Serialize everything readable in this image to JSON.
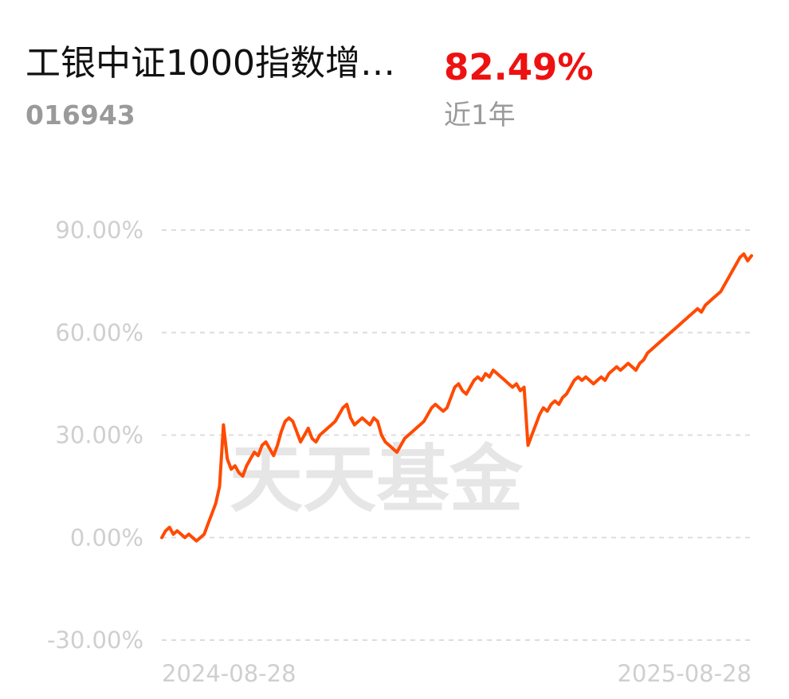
{
  "header": {
    "fund_name": "工银中证1000指数增…",
    "fund_code": "016943",
    "return_value": "82.49%",
    "return_period": "近1年"
  },
  "watermark": "天天基金",
  "colors": {
    "line": "#ff4a00",
    "return": "#ee1111",
    "grid": "#dddddd",
    "tick": "#cfcfcf"
  },
  "chart_data": {
    "type": "line",
    "title": "",
    "xlabel": "",
    "ylabel": "",
    "x_tick_labels": [
      "2024-08-28",
      "2025-08-28"
    ],
    "y_tick_labels": [
      "90.00%",
      "60.00%",
      "30.00%",
      "0.00%",
      "-30.00%"
    ],
    "y_ticks": [
      90,
      60,
      30,
      0,
      -30
    ],
    "ylim": [
      -30,
      90
    ],
    "grid": true,
    "legend": "none",
    "series": [
      {
        "values": [
          0,
          2,
          3,
          1,
          2,
          1,
          0,
          1,
          0,
          -1,
          0,
          1,
          4,
          7,
          10,
          15,
          33,
          23,
          20,
          21,
          19,
          18,
          21,
          23,
          25,
          24,
          27,
          28,
          26,
          24,
          27,
          31,
          34,
          35,
          34,
          31,
          28,
          30,
          32,
          29,
          28,
          30,
          31,
          32,
          33,
          34,
          36,
          38,
          39,
          35,
          33,
          34,
          35,
          34,
          33,
          35,
          34,
          30,
          28,
          27,
          26,
          25,
          27,
          29,
          30,
          31,
          32,
          33,
          34,
          36,
          38,
          39,
          38,
          37,
          38,
          41,
          44,
          45,
          43,
          42,
          44,
          46,
          47,
          46,
          48,
          47,
          49,
          48,
          47,
          46,
          45,
          44,
          45,
          43,
          44,
          27,
          30,
          33,
          36,
          38,
          37,
          39,
          40,
          39,
          41,
          42,
          44,
          46,
          47,
          46,
          47,
          46,
          45,
          46,
          47,
          46,
          48,
          49,
          50,
          49,
          50,
          51,
          50,
          49,
          51,
          52,
          54,
          55,
          56,
          57,
          58,
          59,
          60,
          61,
          62,
          63,
          64,
          65,
          66,
          67,
          66,
          68,
          69,
          70,
          71,
          72,
          74,
          76,
          78,
          80,
          82,
          83,
          81,
          82.49
        ]
      }
    ]
  }
}
